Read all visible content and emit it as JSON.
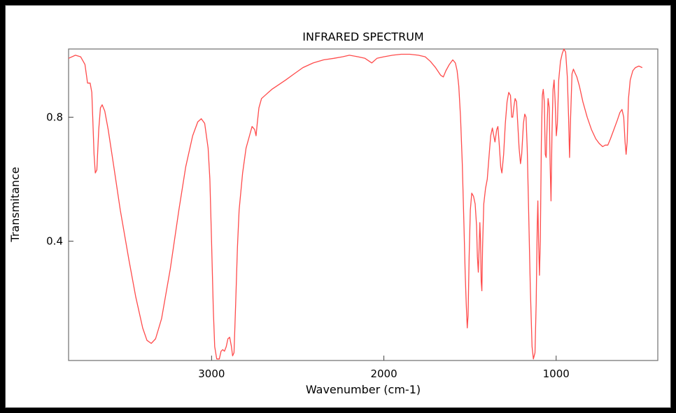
{
  "chart_data": {
    "type": "line",
    "title": "INFRARED SPECTRUM",
    "xlabel": "Wavenumber (cm-1)",
    "ylabel": "Transmitance",
    "xlim": [
      3830,
      410
    ],
    "ylim": [
      0.015,
      1.02
    ],
    "x_ticks": [
      3000,
      2000,
      1000
    ],
    "x_tick_labels": [
      "3000",
      "2000",
      "1000"
    ],
    "y_ticks": [
      0.8,
      0.4
    ],
    "y_tick_labels": [
      "0.8",
      "0.4"
    ],
    "grid": false,
    "series": [
      {
        "name": "spectrum",
        "color": "#ff4b4b",
        "points": [
          [
            3830,
            0.99
          ],
          [
            3790,
            1.0
          ],
          [
            3760,
            0.995
          ],
          [
            3735,
            0.97
          ],
          [
            3720,
            0.91
          ],
          [
            3705,
            0.91
          ],
          [
            3695,
            0.88
          ],
          [
            3690,
            0.8
          ],
          [
            3682,
            0.68
          ],
          [
            3675,
            0.62
          ],
          [
            3666,
            0.63
          ],
          [
            3655,
            0.76
          ],
          [
            3645,
            0.83
          ],
          [
            3635,
            0.84
          ],
          [
            3620,
            0.82
          ],
          [
            3600,
            0.76
          ],
          [
            3570,
            0.65
          ],
          [
            3530,
            0.5
          ],
          [
            3480,
            0.34
          ],
          [
            3440,
            0.22
          ],
          [
            3400,
            0.12
          ],
          [
            3375,
            0.08
          ],
          [
            3350,
            0.07
          ],
          [
            3325,
            0.085
          ],
          [
            3290,
            0.15
          ],
          [
            3240,
            0.31
          ],
          [
            3190,
            0.5
          ],
          [
            3150,
            0.64
          ],
          [
            3110,
            0.74
          ],
          [
            3080,
            0.785
          ],
          [
            3060,
            0.795
          ],
          [
            3040,
            0.78
          ],
          [
            3020,
            0.7
          ],
          [
            3010,
            0.6
          ],
          [
            3000,
            0.4
          ],
          [
            2990,
            0.18
          ],
          [
            2982,
            0.06
          ],
          [
            2970,
            0.02
          ],
          [
            2955,
            0.02
          ],
          [
            2945,
            0.045
          ],
          [
            2935,
            0.05
          ],
          [
            2925,
            0.045
          ],
          [
            2915,
            0.06
          ],
          [
            2905,
            0.085
          ],
          [
            2895,
            0.09
          ],
          [
            2885,
            0.06
          ],
          [
            2878,
            0.03
          ],
          [
            2870,
            0.04
          ],
          [
            2860,
            0.2
          ],
          [
            2850,
            0.38
          ],
          [
            2840,
            0.5
          ],
          [
            2820,
            0.62
          ],
          [
            2800,
            0.7
          ],
          [
            2780,
            0.74
          ],
          [
            2765,
            0.77
          ],
          [
            2750,
            0.76
          ],
          [
            2742,
            0.74
          ],
          [
            2735,
            0.78
          ],
          [
            2725,
            0.83
          ],
          [
            2710,
            0.86
          ],
          [
            2680,
            0.875
          ],
          [
            2650,
            0.89
          ],
          [
            2610,
            0.905
          ],
          [
            2570,
            0.92
          ],
          [
            2520,
            0.94
          ],
          [
            2470,
            0.96
          ],
          [
            2410,
            0.975
          ],
          [
            2350,
            0.985
          ],
          [
            2290,
            0.99
          ],
          [
            2240,
            0.995
          ],
          [
            2200,
            1.0
          ],
          [
            2150,
            0.995
          ],
          [
            2110,
            0.99
          ],
          [
            2070,
            0.975
          ],
          [
            2040,
            0.99
          ],
          [
            2000,
            0.995
          ],
          [
            1950,
            1.0
          ],
          [
            1900,
            1.003
          ],
          [
            1850,
            1.003
          ],
          [
            1800,
            1.0
          ],
          [
            1760,
            0.995
          ],
          [
            1730,
            0.98
          ],
          [
            1700,
            0.96
          ],
          [
            1670,
            0.935
          ],
          [
            1655,
            0.93
          ],
          [
            1640,
            0.95
          ],
          [
            1620,
            0.97
          ],
          [
            1600,
            0.985
          ],
          [
            1585,
            0.975
          ],
          [
            1575,
            0.95
          ],
          [
            1565,
            0.9
          ],
          [
            1555,
            0.8
          ],
          [
            1545,
            0.65
          ],
          [
            1535,
            0.45
          ],
          [
            1528,
            0.3
          ],
          [
            1522,
            0.2
          ],
          [
            1516,
            0.12
          ],
          [
            1511,
            0.16
          ],
          [
            1505,
            0.35
          ],
          [
            1498,
            0.5
          ],
          [
            1490,
            0.555
          ],
          [
            1480,
            0.545
          ],
          [
            1470,
            0.52
          ],
          [
            1462,
            0.45
          ],
          [
            1457,
            0.35
          ],
          [
            1452,
            0.3
          ],
          [
            1447,
            0.38
          ],
          [
            1443,
            0.46
          ],
          [
            1439,
            0.4
          ],
          [
            1435,
            0.27
          ],
          [
            1431,
            0.24
          ],
          [
            1427,
            0.38
          ],
          [
            1420,
            0.52
          ],
          [
            1410,
            0.57
          ],
          [
            1400,
            0.6
          ],
          [
            1390,
            0.67
          ],
          [
            1380,
            0.74
          ],
          [
            1370,
            0.765
          ],
          [
            1362,
            0.74
          ],
          [
            1355,
            0.72
          ],
          [
            1345,
            0.76
          ],
          [
            1338,
            0.77
          ],
          [
            1330,
            0.71
          ],
          [
            1322,
            0.64
          ],
          [
            1315,
            0.62
          ],
          [
            1305,
            0.68
          ],
          [
            1295,
            0.78
          ],
          [
            1285,
            0.85
          ],
          [
            1275,
            0.88
          ],
          [
            1265,
            0.87
          ],
          [
            1258,
            0.8
          ],
          [
            1252,
            0.8
          ],
          [
            1244,
            0.84
          ],
          [
            1238,
            0.86
          ],
          [
            1230,
            0.85
          ],
          [
            1222,
            0.77
          ],
          [
            1215,
            0.7
          ],
          [
            1207,
            0.65
          ],
          [
            1200,
            0.68
          ],
          [
            1190,
            0.78
          ],
          [
            1182,
            0.81
          ],
          [
            1175,
            0.8
          ],
          [
            1168,
            0.7
          ],
          [
            1160,
            0.5
          ],
          [
            1150,
            0.25
          ],
          [
            1140,
            0.06
          ],
          [
            1132,
            0.02
          ],
          [
            1123,
            0.04
          ],
          [
            1116,
            0.2
          ],
          [
            1110,
            0.45
          ],
          [
            1106,
            0.53
          ],
          [
            1102,
            0.4
          ],
          [
            1097,
            0.29
          ],
          [
            1092,
            0.4
          ],
          [
            1086,
            0.72
          ],
          [
            1080,
            0.87
          ],
          [
            1075,
            0.89
          ],
          [
            1069,
            0.85
          ],
          [
            1063,
            0.68
          ],
          [
            1058,
            0.67
          ],
          [
            1052,
            0.78
          ],
          [
            1047,
            0.86
          ],
          [
            1040,
            0.83
          ],
          [
            1035,
            0.65
          ],
          [
            1030,
            0.53
          ],
          [
            1024,
            0.75
          ],
          [
            1018,
            0.89
          ],
          [
            1012,
            0.92
          ],
          [
            1006,
            0.85
          ],
          [
            999,
            0.74
          ],
          [
            993,
            0.78
          ],
          [
            985,
            0.92
          ],
          [
            975,
            0.98
          ],
          [
            965,
            1.005
          ],
          [
            955,
            1.02
          ],
          [
            945,
            1.01
          ],
          [
            935,
            0.93
          ],
          [
            928,
            0.8
          ],
          [
            922,
            0.67
          ],
          [
            916,
            0.8
          ],
          [
            908,
            0.94
          ],
          [
            900,
            0.955
          ],
          [
            892,
            0.945
          ],
          [
            880,
            0.93
          ],
          [
            865,
            0.9
          ],
          [
            845,
            0.85
          ],
          [
            820,
            0.8
          ],
          [
            795,
            0.76
          ],
          [
            770,
            0.73
          ],
          [
            750,
            0.715
          ],
          [
            730,
            0.705
          ],
          [
            715,
            0.71
          ],
          [
            700,
            0.71
          ],
          [
            685,
            0.73
          ],
          [
            665,
            0.76
          ],
          [
            645,
            0.79
          ],
          [
            630,
            0.815
          ],
          [
            618,
            0.825
          ],
          [
            608,
            0.8
          ],
          [
            600,
            0.72
          ],
          [
            594,
            0.68
          ],
          [
            588,
            0.72
          ],
          [
            580,
            0.86
          ],
          [
            570,
            0.92
          ],
          [
            555,
            0.95
          ],
          [
            540,
            0.96
          ],
          [
            520,
            0.965
          ],
          [
            500,
            0.96
          ]
        ]
      }
    ]
  }
}
